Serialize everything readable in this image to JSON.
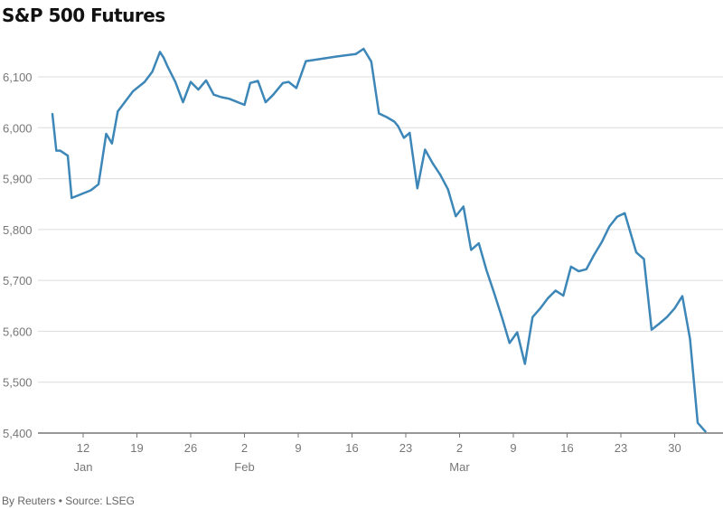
{
  "title": "S&P 500 Futures",
  "footer": {
    "byline": "By Reuters",
    "separator": "•",
    "source": "Source: LSEG"
  },
  "colors": {
    "line": "#3d87b8",
    "grid": "#dcdcdc",
    "axis": "#777777",
    "tick_text": "#777777"
  },
  "chart_data": {
    "type": "line",
    "title": "S&P 500 Futures",
    "xlabel": "",
    "ylabel": "",
    "ylim": [
      5400,
      6150
    ],
    "xlim": [
      "2025-01-08",
      "2025-04-04"
    ],
    "grid": "horizontal",
    "y_ticks": [
      5400,
      5500,
      5600,
      5700,
      5800,
      5900,
      6000,
      6100
    ],
    "y_tick_labels": [
      "5,400",
      "5,500",
      "5,600",
      "5,700",
      "5,800",
      "5,900",
      "6,000",
      "6,100"
    ],
    "x_ticks": [
      {
        "date": "2025-01-12",
        "label": "12",
        "month": "Jan"
      },
      {
        "date": "2025-01-19",
        "label": "19"
      },
      {
        "date": "2025-01-26",
        "label": "26"
      },
      {
        "date": "2025-02-02",
        "label": "2",
        "month": "Feb"
      },
      {
        "date": "2025-02-09",
        "label": "9"
      },
      {
        "date": "2025-02-16",
        "label": "16"
      },
      {
        "date": "2025-02-23",
        "label": "23"
      },
      {
        "date": "2025-03-02",
        "label": "2",
        "month": "Mar"
      },
      {
        "date": "2025-03-09",
        "label": "9"
      },
      {
        "date": "2025-03-16",
        "label": "16"
      },
      {
        "date": "2025-03-23",
        "label": "23"
      },
      {
        "date": "2025-03-30",
        "label": "30"
      }
    ],
    "series": [
      {
        "values": [
          [
            "2025-01-08",
            6027
          ],
          [
            "2025-01-08 12:00",
            5955
          ],
          [
            "2025-01-09",
            5955
          ],
          [
            "2025-01-10",
            5945
          ],
          [
            "2025-01-10 12:00",
            5862
          ],
          [
            "2025-01-13",
            5877
          ],
          [
            "2025-01-14",
            5889
          ],
          [
            "2025-01-15",
            5988
          ],
          [
            "2025-01-15 18:00",
            5969
          ],
          [
            "2025-01-16 12:00",
            6032
          ],
          [
            "2025-01-17 12:00",
            6052
          ],
          [
            "2025-01-18 12:00",
            6072
          ],
          [
            "2025-01-20",
            6090
          ],
          [
            "2025-01-21",
            6110
          ],
          [
            "2025-01-22",
            6149
          ],
          [
            "2025-01-22 12:00",
            6137
          ],
          [
            "2025-01-23",
            6120
          ],
          [
            "2025-01-24",
            6090
          ],
          [
            "2025-01-25",
            6050
          ],
          [
            "2025-01-26",
            6090
          ],
          [
            "2025-01-27",
            6075
          ],
          [
            "2025-01-28",
            6093
          ],
          [
            "2025-01-29",
            6065
          ],
          [
            "2025-01-30",
            6060
          ],
          [
            "2025-01-31",
            6057
          ],
          [
            "2025-02-02",
            6045
          ],
          [
            "2025-02-02 18:00",
            6088
          ],
          [
            "2025-02-03 18:00",
            6092
          ],
          [
            "2025-02-04 18:00",
            6050
          ],
          [
            "2025-02-05 18:00",
            6065
          ],
          [
            "2025-02-07",
            6088
          ],
          [
            "2025-02-07 18:00",
            6090
          ],
          [
            "2025-02-08 18:00",
            6078
          ],
          [
            "2025-02-10",
            6131
          ],
          [
            "2025-02-11",
            6133
          ],
          [
            "2025-02-14",
            6140
          ],
          [
            "2025-02-16 12:00",
            6145
          ],
          [
            "2025-02-17 12:00",
            6155
          ],
          [
            "2025-02-18 12:00",
            6130
          ],
          [
            "2025-02-19 12:00",
            6028
          ],
          [
            "2025-02-20 12:00",
            6021
          ],
          [
            "2025-02-21 12:00",
            6012
          ],
          [
            "2025-02-22",
            6003
          ],
          [
            "2025-02-22 18:00",
            5980
          ],
          [
            "2025-02-23 12:00",
            5990
          ],
          [
            "2025-02-24 12:00",
            5881
          ],
          [
            "2025-02-25 12:00",
            5957
          ],
          [
            "2025-02-26 12:00",
            5930
          ],
          [
            "2025-02-27 12:00",
            5907
          ],
          [
            "2025-02-28 12:00",
            5879
          ],
          [
            "2025-03-01 12:00",
            5826
          ],
          [
            "2025-03-02 12:00",
            5845
          ],
          [
            "2025-03-03 12:00",
            5760
          ],
          [
            "2025-03-04 12:00",
            5773
          ],
          [
            "2025-03-05 12:00",
            5720
          ],
          [
            "2025-03-06 12:00",
            5675
          ],
          [
            "2025-03-07 12:00",
            5628
          ],
          [
            "2025-03-08 12:00",
            5577
          ],
          [
            "2025-03-09 12:00",
            5598
          ],
          [
            "2025-03-10 12:00",
            5536
          ],
          [
            "2025-03-11 12:00",
            5628
          ],
          [
            "2025-03-12 12:00",
            5645
          ],
          [
            "2025-03-13 12:00",
            5665
          ],
          [
            "2025-03-14 12:00",
            5680
          ],
          [
            "2025-03-15 12:00",
            5670
          ],
          [
            "2025-03-16 12:00",
            5727
          ],
          [
            "2025-03-17 12:00",
            5718
          ],
          [
            "2025-03-18 12:00",
            5722
          ],
          [
            "2025-03-19 12:00",
            5750
          ],
          [
            "2025-03-20 12:00",
            5775
          ],
          [
            "2025-03-21 12:00",
            5806
          ],
          [
            "2025-03-22 12:00",
            5825
          ],
          [
            "2025-03-23 12:00",
            5832
          ],
          [
            "2025-03-25",
            5755
          ],
          [
            "2025-03-26",
            5742
          ],
          [
            "2025-03-27",
            5603
          ],
          [
            "2025-03-28",
            5615
          ],
          [
            "2025-03-29",
            5628
          ],
          [
            "2025-03-30",
            5645
          ],
          [
            "2025-03-31",
            5669
          ],
          [
            "2025-04-01",
            5585
          ],
          [
            "2025-04-02",
            5420
          ],
          [
            "2025-04-03",
            5403
          ]
        ]
      }
    ]
  }
}
